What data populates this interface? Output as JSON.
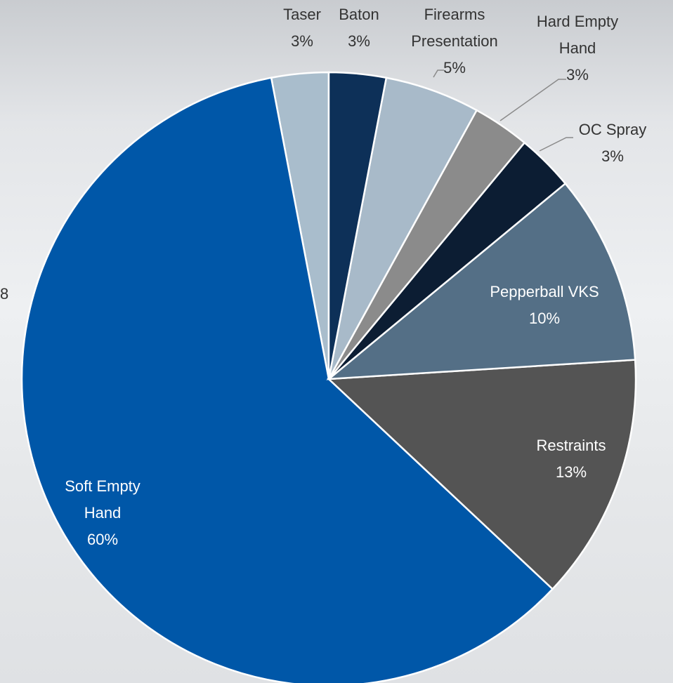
{
  "chart_data": {
    "type": "pie",
    "categories": [
      "Baton",
      "Firearms Presentation",
      "Hard Empty Hand",
      "OC Spray",
      "Pepperball VKS",
      "Restraints",
      "Soft Empty Hand",
      "Taser"
    ],
    "values": [
      3,
      5,
      3,
      3,
      10,
      13,
      60,
      3
    ],
    "value_labels": [
      "3%",
      "5%",
      "3%",
      "3%",
      "10%",
      "13%",
      "60%",
      "3%"
    ],
    "colors": [
      "#0d3058",
      "#a8bac9",
      "#8b8b8b",
      "#0c1d33",
      "#546f86",
      "#545454",
      "#0057a8",
      "#a9bdcc"
    ],
    "annotation": "8"
  }
}
